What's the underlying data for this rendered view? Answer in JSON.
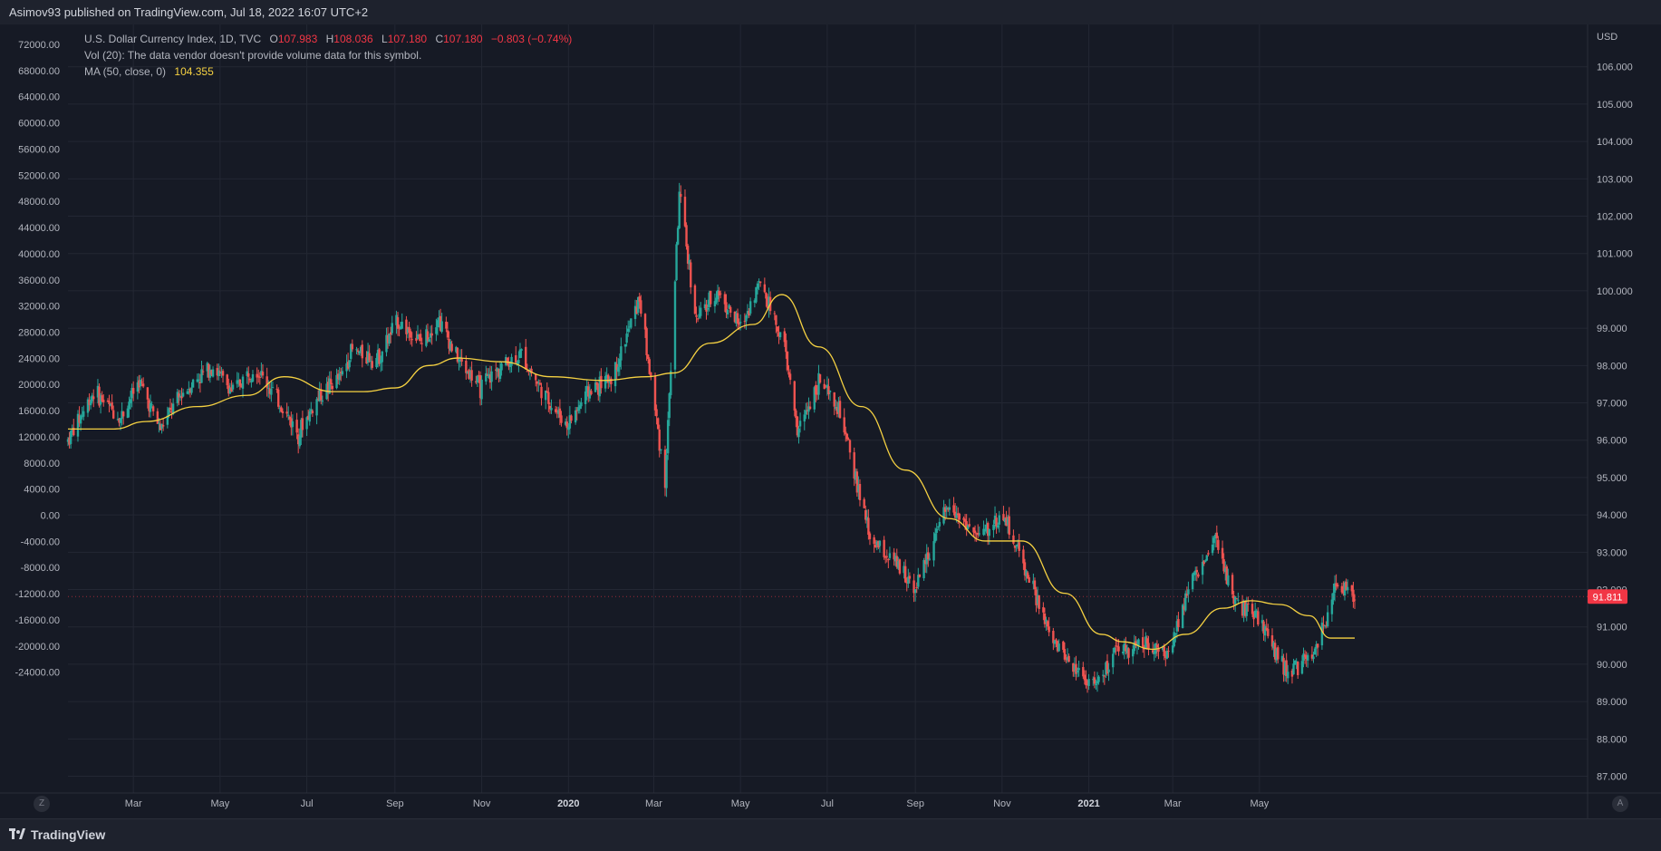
{
  "publisher": "Asimov93 published on TradingView.com, Jul 18, 2022 16:07 UTC+2",
  "legend": {
    "symbol": "U.S. Dollar Currency Index, 1D, TVC",
    "o_label": "O",
    "o": "107.983",
    "h_label": "H",
    "h": "108.036",
    "l_label": "L",
    "l": "107.180",
    "c_label": "C",
    "c": "107.180",
    "change": "−0.803 (−0.74%)",
    "vol": "Vol (20): The data vendor doesn't provide volume data for this symbol.",
    "ma_label": "MA (50, close, 0)",
    "ma_value": "104.355"
  },
  "footer": {
    "brand": "TradingView"
  },
  "buttons": {
    "z": "Z",
    "a": "A"
  },
  "colors": {
    "up": "#26a69a",
    "down": "#ef5350",
    "ma": "#f5d142",
    "price_tag": "#f23645",
    "grid": "#232733"
  },
  "chart_data": {
    "type": "candlestick",
    "currency_label": "USD",
    "last_price_tag": "91.811",
    "right_axis": {
      "ticks": [
        "106.000",
        "105.000",
        "104.000",
        "103.000",
        "102.000",
        "101.000",
        "100.000",
        "99.000",
        "98.000",
        "97.000",
        "96.000",
        "95.000",
        "94.000",
        "93.000",
        "92.000",
        "91.000",
        "90.000",
        "89.000",
        "88.000",
        "87.000"
      ],
      "range": [
        86.6,
        106.6
      ]
    },
    "left_axis": {
      "ticks": [
        "72000.00",
        "68000.00",
        "64000.00",
        "60000.00",
        "56000.00",
        "52000.00",
        "48000.00",
        "44000.00",
        "40000.00",
        "36000.00",
        "32000.00",
        "28000.00",
        "24000.00",
        "20000.00",
        "16000.00",
        "12000.00",
        "8000.00",
        "4000.00",
        "0.00",
        "-4000.00",
        "-8000.00",
        "-12000.00",
        "-16000.00",
        "-20000.00",
        "-24000.00"
      ]
    },
    "x_axis": {
      "labels": [
        "Mar",
        "May",
        "Jul",
        "Sep",
        "Nov",
        "2020",
        "Mar",
        "May",
        "Jul",
        "Sep",
        "Nov",
        "2021",
        "Mar",
        "May"
      ],
      "bold": [
        false,
        false,
        false,
        false,
        false,
        true,
        false,
        false,
        false,
        false,
        false,
        true,
        false,
        false
      ]
    },
    "price_path": [
      [
        "2019-01-14",
        96.0
      ],
      [
        "2019-02-01",
        97.3
      ],
      [
        "2019-02-20",
        96.6
      ],
      [
        "2019-03-05",
        97.6
      ],
      [
        "2019-03-20",
        96.3
      ],
      [
        "2019-04-05",
        97.3
      ],
      [
        "2019-04-25",
        98.0
      ],
      [
        "2019-05-10",
        97.3
      ],
      [
        "2019-05-25",
        98.0
      ],
      [
        "2019-06-05",
        97.4
      ],
      [
        "2019-06-25",
        96.2
      ],
      [
        "2019-07-10",
        97.2
      ],
      [
        "2019-07-25",
        97.7
      ],
      [
        "2019-08-01",
        98.4
      ],
      [
        "2019-08-20",
        98.2
      ],
      [
        "2019-09-03",
        99.2
      ],
      [
        "2019-09-20",
        98.6
      ],
      [
        "2019-10-01",
        99.3
      ],
      [
        "2019-10-15",
        98.2
      ],
      [
        "2019-10-31",
        97.4
      ],
      [
        "2019-11-15",
        98.0
      ],
      [
        "2019-11-29",
        98.3
      ],
      [
        "2019-12-15",
        97.2
      ],
      [
        "2019-12-31",
        96.4
      ],
      [
        "2020-01-15",
        97.3
      ],
      [
        "2020-02-01",
        97.7
      ],
      [
        "2020-02-20",
        99.8
      ],
      [
        "2020-03-09",
        94.9
      ],
      [
        "2020-03-19",
        102.6
      ],
      [
        "2020-03-31",
        99.2
      ],
      [
        "2020-04-15",
        100.0
      ],
      [
        "2020-05-01",
        99.0
      ],
      [
        "2020-05-15",
        100.3
      ],
      [
        "2020-06-01",
        98.5
      ],
      [
        "2020-06-10",
        96.2
      ],
      [
        "2020-06-25",
        97.6
      ],
      [
        "2020-07-10",
        96.7
      ],
      [
        "2020-07-31",
        93.4
      ],
      [
        "2020-08-20",
        92.6
      ],
      [
        "2020-09-01",
        92.1
      ],
      [
        "2020-09-25",
        94.3
      ],
      [
        "2020-10-15",
        93.4
      ],
      [
        "2020-11-02",
        94.0
      ],
      [
        "2020-11-20",
        92.3
      ],
      [
        "2020-12-05",
        90.7
      ],
      [
        "2020-12-20",
        90.0
      ],
      [
        "2021-01-06",
        89.4
      ],
      [
        "2021-01-20",
        90.3
      ],
      [
        "2021-02-10",
        90.6
      ],
      [
        "2021-02-25",
        90.2
      ],
      [
        "2021-03-10",
        91.9
      ],
      [
        "2021-03-31",
        93.3
      ],
      [
        "2021-04-15",
        91.6
      ],
      [
        "2021-05-01",
        91.2
      ],
      [
        "2021-05-20",
        89.8
      ],
      [
        "2021-06-05",
        90.1
      ],
      [
        "2021-06-16",
        91.0
      ],
      [
        "2021-06-25",
        92.2
      ],
      [
        "2021-07-07",
        91.81
      ]
    ],
    "ma_path": [
      [
        "2019-01-14",
        96.3
      ],
      [
        "2019-02-15",
        96.3
      ],
      [
        "2019-03-10",
        96.5
      ],
      [
        "2019-04-15",
        96.9
      ],
      [
        "2019-05-20",
        97.2
      ],
      [
        "2019-06-15",
        97.7
      ],
      [
        "2019-07-20",
        97.3
      ],
      [
        "2019-08-10",
        97.3
      ],
      [
        "2019-09-01",
        97.4
      ],
      [
        "2019-09-25",
        98.0
      ],
      [
        "2019-10-15",
        98.2
      ],
      [
        "2019-11-15",
        98.1
      ],
      [
        "2019-12-20",
        97.7
      ],
      [
        "2020-01-25",
        97.6
      ],
      [
        "2020-02-25",
        97.7
      ],
      [
        "2020-03-15",
        97.8
      ],
      [
        "2020-04-10",
        98.6
      ],
      [
        "2020-05-10",
        99.1
      ],
      [
        "2020-05-30",
        99.9
      ],
      [
        "2020-06-25",
        98.5
      ],
      [
        "2020-07-25",
        96.9
      ],
      [
        "2020-08-25",
        95.2
      ],
      [
        "2020-09-25",
        93.9
      ],
      [
        "2020-10-20",
        93.3
      ],
      [
        "2020-11-15",
        93.3
      ],
      [
        "2020-12-15",
        91.9
      ],
      [
        "2021-01-10",
        90.8
      ],
      [
        "2021-01-25",
        90.6
      ],
      [
        "2021-02-15",
        90.4
      ],
      [
        "2021-03-10",
        90.8
      ],
      [
        "2021-04-05",
        91.5
      ],
      [
        "2021-04-25",
        91.7
      ],
      [
        "2021-05-15",
        91.6
      ],
      [
        "2021-06-05",
        91.3
      ],
      [
        "2021-06-20",
        90.7
      ],
      [
        "2021-07-07",
        90.7
      ]
    ]
  }
}
